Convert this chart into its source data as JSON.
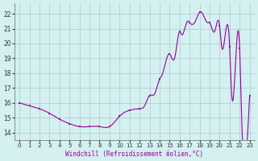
{
  "x": [
    0,
    1,
    2,
    3,
    4,
    5,
    6,
    7,
    8,
    9,
    10,
    11,
    12,
    13,
    14,
    15,
    16,
    17,
    18,
    19,
    20,
    21,
    22,
    23
  ],
  "y": [
    16.0,
    15.8,
    15.6,
    15.3,
    14.9,
    14.6,
    14.4,
    14.4,
    14.4,
    14.4,
    15.1,
    15.5,
    15.6,
    16.5,
    17.6,
    19.3,
    20.8,
    21.4,
    22.1,
    21.4,
    21.2,
    19.8,
    19.7,
    16.5
  ],
  "extra_points": {
    "x": [
      12.5,
      13.5,
      14.2,
      15.5,
      16.2,
      16.8,
      17.5,
      18.2,
      18.8,
      19.5,
      20.2,
      21.2,
      22.2,
      22.8
    ],
    "y": [
      15.8,
      16.6,
      17.8,
      19.0,
      20.6,
      21.5,
      21.4,
      22.1,
      21.4,
      20.8,
      19.8,
      16.6,
      15.0,
      13.9
    ]
  },
  "line_color": "#990099",
  "marker_color": "#990099",
  "bg_color": "#d4f0f0",
  "grid_color": "#aacccc",
  "axis_line_color": "#666666",
  "xlabel": "Windchill (Refroidissement éolien,°C)",
  "xlabel_color": "#990099",
  "yticks": [
    14,
    15,
    16,
    17,
    18,
    19,
    20,
    21,
    22
  ],
  "xticks": [
    0,
    1,
    2,
    3,
    4,
    5,
    6,
    7,
    8,
    9,
    10,
    11,
    12,
    13,
    14,
    15,
    16,
    17,
    18,
    19,
    20,
    21,
    22,
    23
  ],
  "ylim": [
    13.5,
    22.7
  ],
  "xlim": [
    -0.5,
    23.5
  ]
}
